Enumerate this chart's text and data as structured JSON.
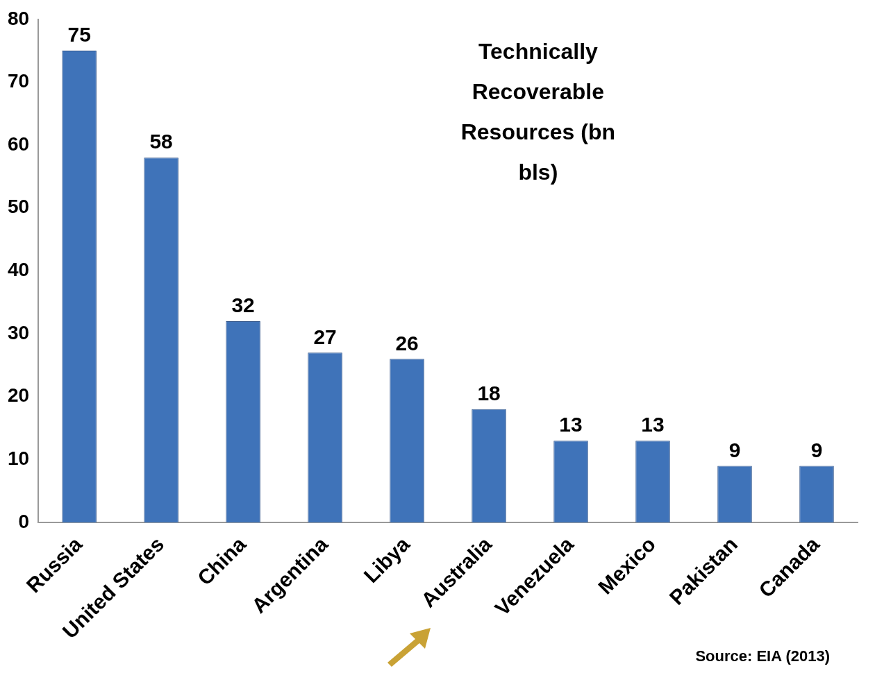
{
  "chart_data": {
    "type": "bar",
    "title": "Technically Recoverable Resources (bn bls)",
    "categories": [
      "Russia",
      "United States",
      "China",
      "Argentina",
      "Libya",
      "Australia",
      "Venezuela",
      "Mexico",
      "Pakistan",
      "Canada"
    ],
    "values": [
      75,
      58,
      32,
      27,
      26,
      18,
      13,
      13,
      9,
      9
    ],
    "color": "#3f73b9",
    "ylim": [
      0,
      80
    ],
    "yticks": [
      0,
      10,
      20,
      30,
      40,
      50,
      60,
      70,
      80
    ],
    "grid": false,
    "legend": false,
    "data_labels": true,
    "annotations": [
      "Source: EIA (2013)"
    ]
  }
}
